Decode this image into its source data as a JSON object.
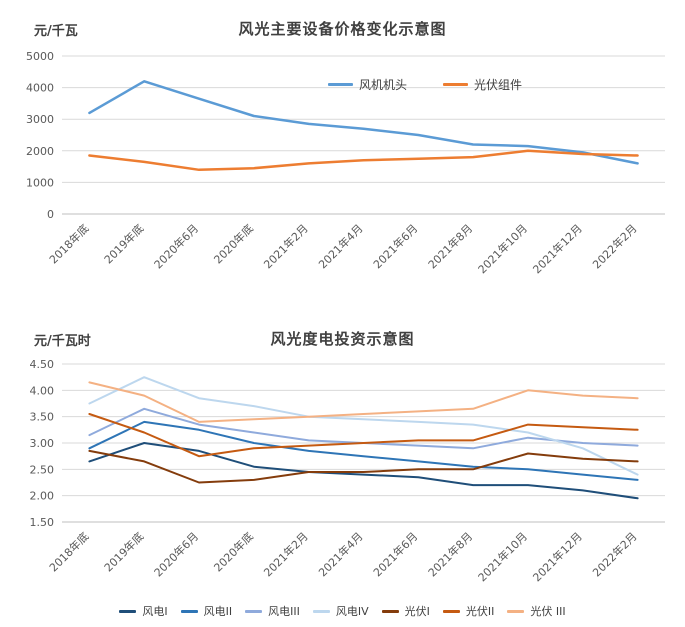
{
  "page": {
    "background": "#ffffff"
  },
  "chart_data": [
    {
      "type": "line",
      "title": "风光主要设备价格变化示意图",
      "ylabel": "元/千瓦",
      "xlabel": "",
      "grid": true,
      "legend_position": "top-center-inside",
      "ylim": [
        0,
        5000
      ],
      "yticks": [
        0,
        1000,
        2000,
        3000,
        4000,
        5000
      ],
      "ytick_labels": [
        "0",
        "1000",
        "2000",
        "3000",
        "4000",
        "5000"
      ],
      "categories": [
        "2018年底",
        "2019年底",
        "2020年6月",
        "2020年底",
        "2021年2月",
        "2021年4月",
        "2021年6月",
        "2021年8月",
        "2021年10月",
        "2021年12月",
        "2022年2月"
      ],
      "series": [
        {
          "name": "风机机头",
          "color": "#5B9BD5",
          "values": [
            3200,
            4200,
            3650,
            3100,
            2850,
            2700,
            2500,
            2200,
            2150,
            1950,
            1600
          ]
        },
        {
          "name": "光伏组件",
          "color": "#ED7D31",
          "values": [
            1850,
            1650,
            1400,
            1450,
            1600,
            1700,
            1750,
            1800,
            2000,
            1900,
            1850
          ]
        }
      ]
    },
    {
      "type": "line",
      "title": "风光度电投资示意图",
      "ylabel": "元/千瓦时",
      "xlabel": "",
      "grid": true,
      "legend_position": "bottom",
      "ylim": [
        1.5,
        4.5
      ],
      "yticks": [
        1.5,
        2.0,
        2.5,
        3.0,
        3.5,
        4.0,
        4.5
      ],
      "ytick_labels": [
        "1.50",
        "2.00",
        "2.50",
        "3.00",
        "3.50",
        "4.00",
        "4.50"
      ],
      "categories": [
        "2018年底",
        "2019年底",
        "2020年6月",
        "2020年底",
        "2021年2月",
        "2021年4月",
        "2021年6月",
        "2021年8月",
        "2021年10月",
        "2021年12月",
        "2022年2月"
      ],
      "series": [
        {
          "name": "风电I",
          "color": "#1F4E79",
          "values": [
            2.65,
            3.0,
            2.85,
            2.55,
            2.45,
            2.4,
            2.35,
            2.2,
            2.2,
            2.1,
            1.95
          ]
        },
        {
          "name": "风电II",
          "color": "#2E75B6",
          "values": [
            2.9,
            3.4,
            3.25,
            3.0,
            2.85,
            2.75,
            2.65,
            2.55,
            2.5,
            2.4,
            2.3
          ]
        },
        {
          "name": "风电III",
          "color": "#8FAADC",
          "values": [
            3.15,
            3.65,
            3.35,
            3.2,
            3.05,
            3.0,
            2.95,
            2.9,
            3.1,
            3.0,
            2.95
          ]
        },
        {
          "name": "风电IV",
          "color": "#BDD7EE",
          "values": [
            3.75,
            4.25,
            3.85,
            3.7,
            3.5,
            3.45,
            3.4,
            3.35,
            3.2,
            2.9,
            2.4
          ]
        },
        {
          "name": "光伏I",
          "color": "#843C0C",
          "values": [
            2.85,
            2.65,
            2.25,
            2.3,
            2.45,
            2.45,
            2.5,
            2.5,
            2.8,
            2.7,
            2.65
          ]
        },
        {
          "name": "光伏II",
          "color": "#C55A11",
          "values": [
            3.55,
            3.2,
            2.75,
            2.9,
            2.95,
            3.0,
            3.05,
            3.05,
            3.35,
            3.3,
            3.25
          ]
        },
        {
          "name": "光伏 III",
          "color": "#F4B183",
          "values": [
            4.15,
            3.9,
            3.4,
            3.45,
            3.5,
            3.55,
            3.6,
            3.65,
            4.0,
            3.9,
            3.85
          ]
        }
      ]
    }
  ]
}
